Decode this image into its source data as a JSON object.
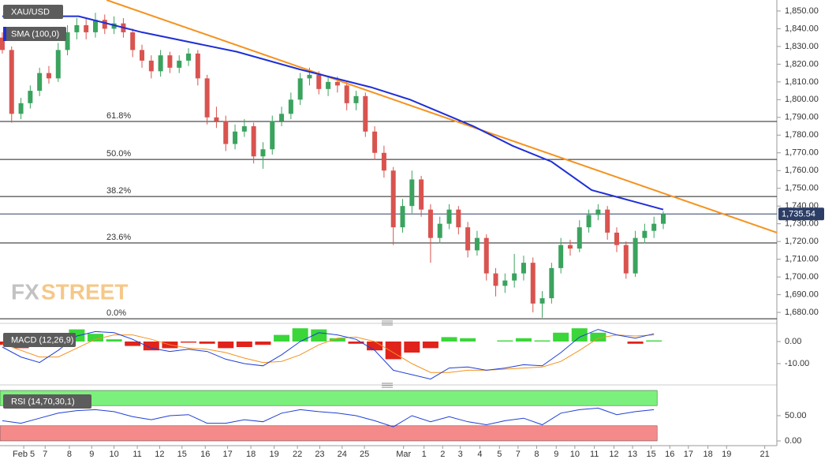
{
  "chart_data": [
    {
      "type": "candlestick",
      "title": "XAU/USD",
      "up_color": "#3aa35e",
      "down_color": "#d9534f",
      "xlim": [
        -0.25,
        83.2
      ],
      "xticks": [
        {
          "value": 2.3,
          "label": "Feb 5"
        },
        {
          "value": 4.6,
          "label": "7"
        },
        {
          "value": 7.2,
          "label": "8"
        },
        {
          "value": 9.6,
          "label": "9"
        },
        {
          "value": 12.0,
          "label": "10"
        },
        {
          "value": 14.5,
          "label": "11"
        },
        {
          "value": 16.9,
          "label": "12"
        },
        {
          "value": 19.3,
          "label": "15"
        },
        {
          "value": 21.8,
          "label": "16"
        },
        {
          "value": 24.2,
          "label": "17"
        },
        {
          "value": 26.7,
          "label": "18"
        },
        {
          "value": 29.2,
          "label": "19"
        },
        {
          "value": 31.7,
          "label": "22"
        },
        {
          "value": 34.1,
          "label": "23"
        },
        {
          "value": 36.5,
          "label": "24"
        },
        {
          "value": 38.9,
          "label": "25"
        },
        {
          "value": 43.1,
          "label": "Mar"
        },
        {
          "value": 45.3,
          "label": "1"
        },
        {
          "value": 47.3,
          "label": "2"
        },
        {
          "value": 49.2,
          "label": "3"
        },
        {
          "value": 51.3,
          "label": "4"
        },
        {
          "value": 53.4,
          "label": "5"
        },
        {
          "value": 55.4,
          "label": "7"
        },
        {
          "value": 57.4,
          "label": "8"
        },
        {
          "value": 59.5,
          "label": "9"
        },
        {
          "value": 61.5,
          "label": "10"
        },
        {
          "value": 63.6,
          "label": "11"
        },
        {
          "value": 65.7,
          "label": "12"
        },
        {
          "value": 67.7,
          "label": "13"
        },
        {
          "value": 69.7,
          "label": "15"
        },
        {
          "value": 71.7,
          "label": "16"
        },
        {
          "value": 73.7,
          "label": "17"
        },
        {
          "value": 75.8,
          "label": "18"
        },
        {
          "value": 77.8,
          "label": "19"
        },
        {
          "value": 81.9,
          "label": "21"
        }
      ],
      "ylim": [
        1674.7,
        1856.2
      ],
      "yticks": [
        {
          "value": 1680,
          "label": "1,680.00"
        },
        {
          "value": 1690,
          "label": "1,690.00"
        },
        {
          "value": 1700,
          "label": "1,700.00"
        },
        {
          "value": 1710,
          "label": "1,710.00"
        },
        {
          "value": 1720,
          "label": "1,720.00"
        },
        {
          "value": 1730,
          "label": "1,730.00"
        },
        {
          "value": 1740,
          "label": "1,740.00"
        },
        {
          "value": 1750,
          "label": "1,750.00"
        },
        {
          "value": 1760,
          "label": "1,760.00"
        },
        {
          "value": 1770,
          "label": "1,770.00"
        },
        {
          "value": 1780,
          "label": "1,780.00"
        },
        {
          "value": 1790,
          "label": "1,790.00"
        },
        {
          "value": 1800,
          "label": "1,800.00"
        },
        {
          "value": 1810,
          "label": "1,810.00"
        },
        {
          "value": 1820,
          "label": "1,820.00"
        },
        {
          "value": 1830,
          "label": "1,830.00"
        },
        {
          "value": 1840,
          "label": "1,840.00"
        },
        {
          "value": 1850,
          "label": "1,850.00"
        }
      ],
      "ohlc": [
        [
          1835,
          1838,
          1826,
          1828
        ],
        [
          1828,
          1830,
          1787,
          1792
        ],
        [
          1792,
          1801,
          1789,
          1798
        ],
        [
          1798,
          1808,
          1795,
          1805
        ],
        [
          1805,
          1818,
          1802,
          1815
        ],
        [
          1815,
          1819,
          1809,
          1812
        ],
        [
          1812,
          1832,
          1810,
          1828
        ],
        [
          1828,
          1842,
          1825,
          1838
        ],
        [
          1838,
          1846,
          1834,
          1842
        ],
        [
          1842,
          1846,
          1834,
          1838
        ],
        [
          1838,
          1849,
          1835,
          1845
        ],
        [
          1845,
          1848,
          1837,
          1840
        ],
        [
          1840,
          1847,
          1837,
          1843
        ],
        [
          1843,
          1846,
          1835,
          1838
        ],
        [
          1838,
          1840,
          1824,
          1828
        ],
        [
          1828,
          1831,
          1818,
          1822
        ],
        [
          1822,
          1825,
          1812,
          1816
        ],
        [
          1816,
          1828,
          1813,
          1825
        ],
        [
          1825,
          1827,
          1815,
          1818
        ],
        [
          1818,
          1825,
          1815,
          1822
        ],
        [
          1822,
          1829,
          1819,
          1826
        ],
        [
          1826,
          1828,
          1808,
          1812
        ],
        [
          1812,
          1814,
          1786,
          1790
        ],
        [
          1790,
          1796,
          1784,
          1788
        ],
        [
          1788,
          1791,
          1771,
          1775
        ],
        [
          1775,
          1786,
          1772,
          1782
        ],
        [
          1782,
          1789,
          1779,
          1785
        ],
        [
          1785,
          1787,
          1764,
          1768
        ],
        [
          1768,
          1776,
          1761,
          1772
        ],
        [
          1772,
          1791,
          1769,
          1788
        ],
        [
          1788,
          1796,
          1785,
          1792
        ],
        [
          1792,
          1804,
          1789,
          1800
        ],
        [
          1800,
          1815,
          1797,
          1812
        ],
        [
          1812,
          1818,
          1808,
          1814
        ],
        [
          1814,
          1816,
          1803,
          1806
        ],
        [
          1806,
          1813,
          1802,
          1810
        ],
        [
          1810,
          1813,
          1804,
          1808
        ],
        [
          1808,
          1810,
          1794,
          1798
        ],
        [
          1798,
          1805,
          1794,
          1802
        ],
        [
          1802,
          1804,
          1779,
          1782
        ],
        [
          1782,
          1785,
          1766,
          1770
        ],
        [
          1770,
          1774,
          1756,
          1760
        ],
        [
          1760,
          1762,
          1718,
          1728
        ],
        [
          1728,
          1744,
          1725,
          1740
        ],
        [
          1740,
          1760,
          1736,
          1755
        ],
        [
          1755,
          1757,
          1734,
          1738
        ],
        [
          1738,
          1741,
          1708,
          1722
        ],
        [
          1722,
          1734,
          1719,
          1730
        ],
        [
          1730,
          1741,
          1727,
          1738
        ],
        [
          1738,
          1740,
          1724,
          1728
        ],
        [
          1728,
          1731,
          1711,
          1715
        ],
        [
          1715,
          1726,
          1712,
          1722
        ],
        [
          1722,
          1724,
          1698,
          1702
        ],
        [
          1702,
          1705,
          1689,
          1695
        ],
        [
          1695,
          1702,
          1691,
          1698
        ],
        [
          1698,
          1713,
          1694,
          1702
        ],
        [
          1702,
          1712,
          1698,
          1708
        ],
        [
          1708,
          1711,
          1680,
          1685
        ],
        [
          1685,
          1692,
          1677,
          1688
        ],
        [
          1688,
          1708,
          1685,
          1705
        ],
        [
          1705,
          1722,
          1702,
          1718
        ],
        [
          1718,
          1721,
          1712,
          1716
        ],
        [
          1716,
          1732,
          1714,
          1728
        ],
        [
          1728,
          1738,
          1725,
          1735
        ],
        [
          1735,
          1741,
          1732,
          1738
        ],
        [
          1738,
          1740,
          1721,
          1725
        ],
        [
          1725,
          1728,
          1714,
          1718
        ],
        [
          1718,
          1720,
          1699,
          1702
        ],
        [
          1702,
          1726,
          1700,
          1722
        ],
        [
          1722,
          1730,
          1719,
          1726
        ],
        [
          1726,
          1734,
          1722,
          1730
        ],
        [
          1730,
          1737,
          1727,
          1735.54
        ]
      ],
      "sma": {
        "name": "SMA (100,0)",
        "color": "#1f2fd6",
        "x": [
          0,
          8.2,
          15,
          25.2,
          32,
          39.6,
          43.8,
          50.6,
          54.8,
          59,
          63.3,
          67.5,
          71
        ],
        "values": [
          1847,
          1847,
          1838,
          1827,
          1817,
          1807,
          1800,
          1785,
          1774,
          1765,
          1749,
          1743,
          1738
        ]
      },
      "trendline": {
        "color": "#f5921e",
        "x": [
          11.2,
          83.2
        ],
        "values": [
          1856.2,
          1725
        ]
      },
      "fib_levels": [
        {
          "label": "61.8%",
          "value": 1787.7
        },
        {
          "label": "50.0%",
          "value": 1766.3
        },
        {
          "label": "38.2%",
          "value": 1745.4
        },
        {
          "label": "23.6%",
          "value": 1719.2
        },
        {
          "label": "0.0%",
          "value": 1676.4
        }
      ],
      "last_price": {
        "value": 1735.54,
        "label": "1,735.54"
      },
      "logo": [
        "FX",
        "STREET"
      ]
    },
    {
      "type": "macd",
      "title": "MACD (12,26,9)",
      "x": [
        0,
        2,
        4,
        6,
        8,
        10,
        12,
        14,
        16,
        18,
        20,
        22,
        24,
        26,
        28,
        30,
        32,
        34,
        36,
        38,
        40,
        42,
        44,
        46,
        48,
        50,
        52,
        54,
        56,
        58,
        60,
        62,
        64,
        66,
        68,
        70
      ],
      "macd": {
        "color": "#1f3fd6",
        "values": [
          -2.5,
          -7,
          -9.5,
          -4,
          2.5,
          4.5,
          4,
          1,
          -3,
          -4.5,
          -3.5,
          -4.5,
          -8,
          -10,
          -11,
          -6,
          0,
          4,
          3,
          1,
          -4,
          -13,
          -15,
          -17,
          -12,
          -11.5,
          -13,
          -12,
          -10.5,
          -11,
          -5,
          2,
          5.5,
          3,
          1.5,
          3.5
        ]
      },
      "signal": {
        "color": "#f5921e",
        "values": [
          -1,
          -4,
          -7,
          -7,
          -3,
          1,
          3,
          3,
          1,
          -1.5,
          -3,
          -3.5,
          -5,
          -7.5,
          -9.5,
          -9,
          -6,
          -1.5,
          1.5,
          2,
          0,
          -5,
          -10,
          -14,
          -14,
          -13,
          -13,
          -12.5,
          -12,
          -11.5,
          -9,
          -4,
          1.5,
          3,
          2.5,
          3
        ]
      },
      "histogram": {
        "up_color": "#3ad63a",
        "down_color": "#e0231b",
        "values": [
          -1.5,
          -3,
          -2.5,
          3,
          5.5,
          3.5,
          1,
          -2,
          -4,
          -3,
          -0.5,
          -1,
          -3,
          -2.5,
          -1.5,
          3,
          6,
          5.5,
          1.5,
          -1,
          -4,
          -8,
          -5,
          -3,
          2,
          1.5,
          0,
          0.5,
          1.5,
          0.5,
          4,
          6,
          4,
          0,
          -1,
          0.5
        ]
      },
      "ylim": [
        -18.57,
        6.07
      ],
      "yticks": [
        {
          "value": 0,
          "label": "0.00"
        },
        {
          "value": -10,
          "label": "-10.00"
        }
      ]
    },
    {
      "type": "rsi",
      "title": "RSI (14,70,30,1)",
      "x": [
        0,
        2,
        4,
        6,
        8,
        10,
        12,
        14,
        16,
        18,
        20,
        22,
        24,
        26,
        28,
        30,
        32,
        34,
        36,
        38,
        40,
        42,
        44,
        46,
        48,
        50,
        52,
        54,
        56,
        58,
        60,
        62,
        64,
        66,
        68,
        70
      ],
      "values": [
        40,
        35,
        45,
        55,
        60,
        62,
        58,
        48,
        42,
        50,
        52,
        35,
        35,
        42,
        38,
        55,
        62,
        58,
        55,
        50,
        40,
        28,
        50,
        38,
        48,
        38,
        32,
        40,
        45,
        32,
        55,
        62,
        65,
        52,
        58,
        62
      ],
      "color": "#1f3fd6",
      "upper_band": [
        70,
        100
      ],
      "lower_band": [
        0,
        30
      ],
      "upper_color": "#7cf07c",
      "lower_color": "#f58a8a",
      "ylim": [
        -4.7,
        104.7
      ],
      "yticks": [
        {
          "value": 50,
          "label": "50.00"
        },
        {
          "value": 0,
          "label": "0.00"
        }
      ]
    }
  ]
}
